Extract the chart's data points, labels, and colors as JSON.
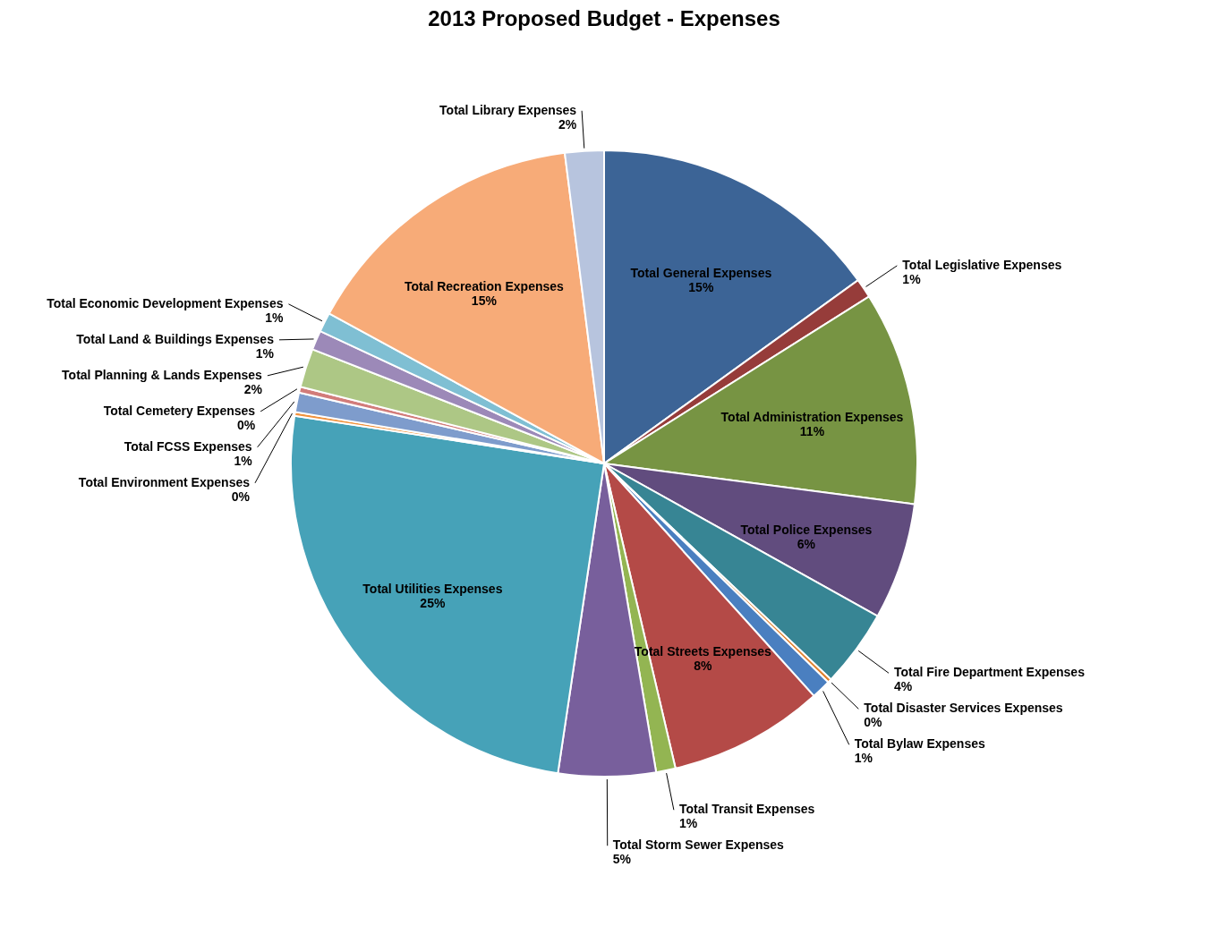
{
  "chart_data": {
    "type": "pie",
    "title": "2013 Proposed Budget - Expenses",
    "categories": [
      "Total General Expenses",
      "Total Legislative Expenses",
      "Total Administration Expenses",
      "Total Police Expenses",
      "Total Fire Department Expenses",
      "Total Disaster Services Expenses",
      "Total Bylaw Expenses",
      "Total Streets Expenses",
      "Total Transit Expenses",
      "Total Storm Sewer Expenses",
      "Total Utilities Expenses",
      "Total Environment Expenses",
      "Total FCSS Expenses",
      "Total Cemetery Expenses",
      "Total Planning & Lands Expenses",
      "Total Land & Buildings Expenses",
      "Total Economic Development Expenses",
      "Total Recreation Expenses",
      "Total Library Expenses"
    ],
    "values": [
      15,
      1,
      11,
      6,
      4,
      0.2,
      1,
      8,
      1,
      5,
      25,
      0.2,
      1,
      0.3,
      2,
      1,
      1,
      15,
      2
    ],
    "value_labels": [
      "15%",
      "1%",
      "11%",
      "6%",
      "4%",
      "0%",
      "1%",
      "8%",
      "1%",
      "5%",
      "25%",
      "0%",
      "1%",
      "0%",
      "2%",
      "1%",
      "1%",
      "15%",
      "2%"
    ],
    "colors": [
      "#3c6496",
      "#963c3a",
      "#779443",
      "#614c7e",
      "#378594",
      "#e0812f",
      "#4a7fc0",
      "#b44a47",
      "#93b552",
      "#785f9c",
      "#46a2b8",
      "#f0923c",
      "#7e9ccc",
      "#d27c7a",
      "#adc785",
      "#9c89b8",
      "#7fbfd3",
      "#f7ab78",
      "#b7c4de"
    ],
    "legend": false
  }
}
